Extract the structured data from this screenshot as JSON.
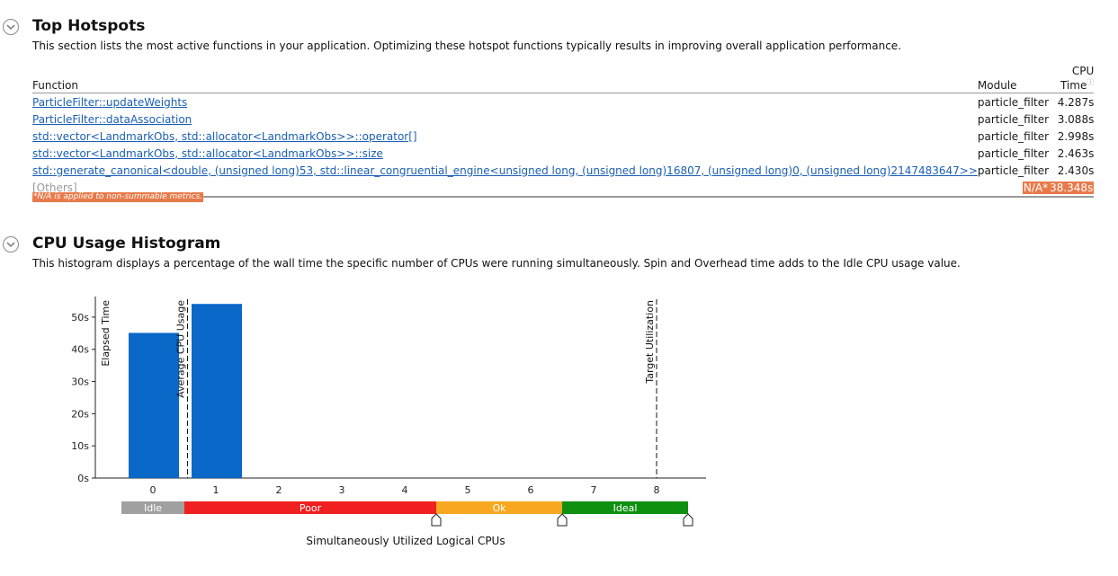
{
  "hotspots": {
    "title": "Top Hotspots",
    "description": "This section lists the most active functions in your application. Optimizing these hotspot functions typically results in improving overall application performance.",
    "columns": {
      "function": "Function",
      "module": "Module",
      "cpu_time": "CPU Time"
    },
    "help_icon": "question-icon",
    "rows": [
      {
        "function": "ParticleFilter::updateWeights",
        "module": "particle_filter",
        "cpu_time": "4.287s"
      },
      {
        "function": "ParticleFilter::dataAssociation",
        "module": "particle_filter",
        "cpu_time": "3.088s"
      },
      {
        "function": "std::vector<LandmarkObs, std::allocator<LandmarkObs>>::operator[]",
        "module": "particle_filter",
        "cpu_time": "2.998s"
      },
      {
        "function": "std::vector<LandmarkObs, std::allocator<LandmarkObs>>::size",
        "module": "particle_filter",
        "cpu_time": "2.463s"
      },
      {
        "function": "std::generate_canonical<double, (unsigned long)53, std::linear_congruential_engine<unsigned long, (unsigned long)16807, (unsigned long)0, (unsigned long)2147483647>>",
        "module": "particle_filter",
        "cpu_time": "2.430s"
      }
    ],
    "others": {
      "function": "[Others]",
      "module": "N/A*",
      "cpu_time": "38.348s"
    },
    "na_note": "*N/A is applied to non-summable metrics."
  },
  "histogram": {
    "title": "CPU Usage Histogram",
    "description": "This histogram displays a percentage of the wall time the specific number of CPUs were running simultaneously. Spin and Overhead time adds to the Idle CPU usage value.",
    "colors": {
      "bar": "#0a68c8",
      "idle": "#a0a0a0",
      "poor": "#f02020",
      "ok": "#f8a820",
      "ideal": "#109010"
    },
    "utilization_bands": [
      {
        "label": "Idle",
        "from": -0.5,
        "to": 0.5,
        "color": "#a0a0a0"
      },
      {
        "label": "Poor",
        "from": 0.5,
        "to": 4.5,
        "color": "#f02020"
      },
      {
        "label": "Ok",
        "from": 4.5,
        "to": 6.5,
        "color": "#f8a820"
      },
      {
        "label": "Ideal",
        "from": 6.5,
        "to": 8.5,
        "color": "#109010"
      }
    ]
  },
  "chart_data": {
    "type": "bar",
    "categories": [
      "0",
      "1",
      "2",
      "3",
      "4",
      "5",
      "6",
      "7",
      "8"
    ],
    "values": [
      45.1,
      54.1,
      0,
      0,
      0,
      0,
      0,
      0,
      0
    ],
    "ylabel": "Elapsed Time",
    "xlabel": "Simultaneously Utilized Logical CPUs",
    "ylim": [
      0,
      55
    ],
    "yticks": [
      "0s",
      "10s",
      "20s",
      "30s",
      "40s",
      "50s"
    ],
    "ytick_values": [
      0,
      10,
      20,
      30,
      40,
      50
    ],
    "markers": [
      {
        "label": "Average CPU Usage",
        "x": 0.55
      },
      {
        "label": "Target Utilization",
        "x": 8
      }
    ],
    "grid": false,
    "legend": "none"
  }
}
